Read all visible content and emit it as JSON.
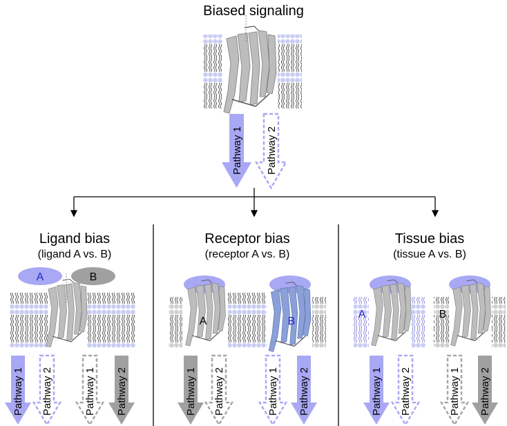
{
  "title": "Biased signaling",
  "pathway_1": "Pathway 1",
  "pathway_2": "Pathway 2",
  "panels": [
    {
      "title": "Ligand bias",
      "subtitle": "(ligand A vs. B)"
    },
    {
      "title": "Receptor bias",
      "subtitle": "(receptor A vs. B)"
    },
    {
      "title": "Tissue bias",
      "subtitle": "(tissue A vs. B)"
    }
  ],
  "labels": {
    "a": "A",
    "b": "B"
  },
  "colors": {
    "blue_fill": "#a8a8f4",
    "blue_dash": "#a8a8f4",
    "gray_fill": "#a0a0a0",
    "gray_dash": "#a6a6a6",
    "label_blue": "#2323c8",
    "receptor_gray": "#bdbdbd",
    "receptor_blue": "#8aa0d8",
    "lipid_head_blue": "#c9cdf2",
    "lipid_head_gray": "#d0d0d0"
  }
}
